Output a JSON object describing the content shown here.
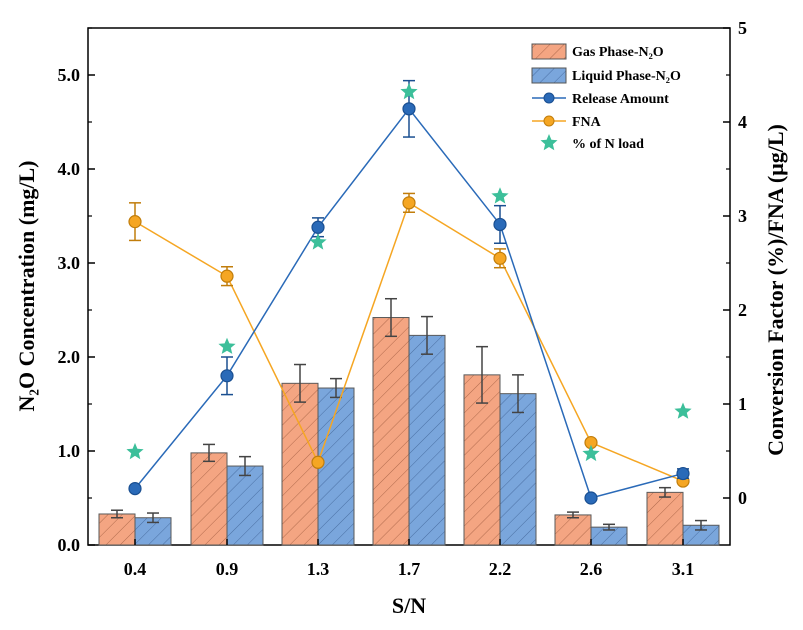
{
  "chart_data": {
    "type": "bar",
    "categories": [
      "0.4",
      "0.9",
      "1.3",
      "1.7",
      "2.2",
      "2.6",
      "3.1"
    ],
    "xlabel": "S/N",
    "ylabel_left": "N₂O Concentration (mg/L)",
    "ylabel_right": "Conversion Factor (%)/FNA (μg/L)",
    "ylim_left": [
      0,
      5.5
    ],
    "ylim_right": [
      -0.5,
      5
    ],
    "yticks_left": [
      "0.0",
      "1.0",
      "2.0",
      "3.0",
      "4.0",
      "5.0"
    ],
    "yticks_right": [
      "0",
      "1",
      "2",
      "3",
      "4",
      "5"
    ],
    "legend_position": "top-right",
    "series": [
      {
        "name": "Gas Phase-N₂O",
        "type": "bar",
        "axis": "left",
        "color": "#f4a582",
        "values": [
          0.33,
          0.98,
          1.72,
          2.42,
          1.81,
          0.32,
          0.56
        ],
        "errors": [
          0.04,
          0.09,
          0.2,
          0.2,
          0.3,
          0.03,
          0.05
        ]
      },
      {
        "name": "Liquid Phase-N₂O",
        "type": "bar",
        "axis": "left",
        "color": "#7aa6dc",
        "values": [
          0.29,
          0.84,
          1.67,
          2.23,
          1.61,
          0.19,
          0.21
        ],
        "errors": [
          0.05,
          0.1,
          0.1,
          0.2,
          0.2,
          0.03,
          0.05
        ]
      },
      {
        "name": "Release Amount",
        "type": "line",
        "axis": "right",
        "color": "#2a6ab8",
        "values": [
          0.1,
          1.3,
          2.88,
          4.14,
          2.91,
          0.0,
          0.26
        ],
        "errors": [
          0.0,
          0.2,
          0.1,
          0.3,
          0.2,
          0.0,
          0.05
        ]
      },
      {
        "name": "FNA",
        "type": "line",
        "axis": "right",
        "color": "#f5a623",
        "values": [
          2.94,
          2.36,
          0.38,
          3.14,
          2.55,
          0.59,
          0.18
        ],
        "errors": [
          0.2,
          0.1,
          0.0,
          0.1,
          0.1,
          0.0,
          0.0
        ]
      },
      {
        "name": "% of N load",
        "type": "scatter",
        "axis": "right",
        "color": "#3cbf9a",
        "values": [
          0.49,
          1.61,
          2.72,
          4.32,
          3.21,
          0.47,
          0.92
        ]
      }
    ]
  }
}
